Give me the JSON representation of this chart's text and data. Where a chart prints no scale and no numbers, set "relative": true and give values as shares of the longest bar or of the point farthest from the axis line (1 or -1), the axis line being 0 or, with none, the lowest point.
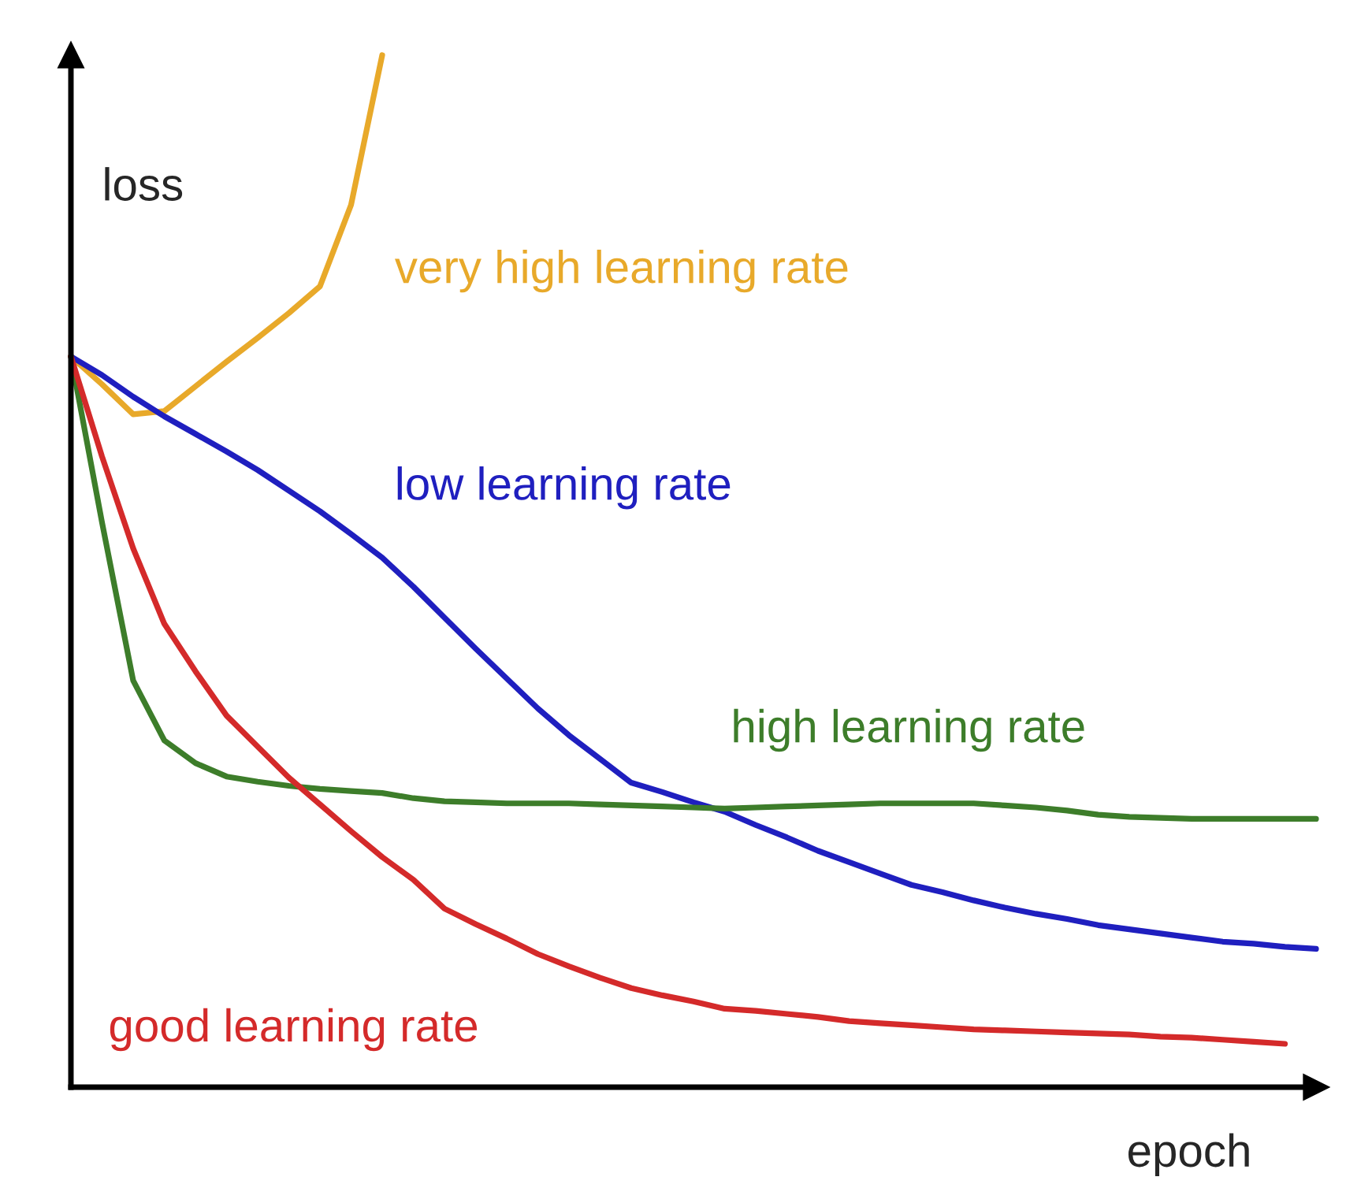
{
  "chart_data": {
    "type": "line",
    "relative": true,
    "ylabel": "loss",
    "xlabel": "epoch",
    "legend": false,
    "marker": "none",
    "line_style": "solid",
    "categories": [
      null,
      null,
      null,
      null,
      null,
      null,
      null,
      null,
      null,
      null,
      null,
      null,
      null,
      null,
      null,
      null,
      null,
      null,
      null,
      null,
      null,
      null,
      null,
      null,
      null,
      null,
      null,
      null,
      null,
      null,
      null,
      null,
      null,
      null,
      null,
      null,
      null,
      null,
      null,
      null,
      null
    ],
    "series": [
      {
        "name": "very high learning rate",
        "color": "#e8a92a",
        "values": [
          0.708,
          0.681,
          0.652,
          0.655,
          0.679,
          0.703,
          0.726,
          0.75,
          0.776,
          0.855,
          1.0,
          null,
          null,
          null,
          null,
          null,
          null,
          null,
          null,
          null,
          null,
          null,
          null,
          null,
          null,
          null,
          null,
          null,
          null,
          null,
          null,
          null,
          null,
          null,
          null,
          null,
          null,
          null,
          null,
          null,
          null
        ]
      },
      {
        "name": "low learning rate",
        "color": "#1f1fbf",
        "values": [
          0.708,
          0.69,
          0.669,
          0.65,
          0.633,
          0.616,
          0.598,
          0.578,
          0.558,
          0.536,
          0.513,
          0.485,
          0.455,
          0.425,
          0.396,
          0.367,
          0.341,
          0.318,
          0.295,
          0.286,
          0.276,
          0.267,
          0.254,
          0.242,
          0.229,
          0.218,
          0.207,
          0.196,
          0.189,
          0.181,
          0.174,
          0.168,
          0.163,
          0.157,
          0.153,
          0.149,
          0.145,
          0.141,
          0.139,
          0.136,
          0.134
        ]
      },
      {
        "name": "high learning rate",
        "color": "#3d7d2a",
        "values": [
          0.708,
          0.547,
          0.394,
          0.336,
          0.314,
          0.301,
          0.296,
          0.292,
          0.289,
          0.287,
          0.285,
          0.28,
          0.277,
          0.276,
          0.275,
          0.275,
          0.275,
          0.274,
          0.273,
          0.272,
          0.271,
          0.27,
          0.271,
          0.272,
          0.273,
          0.274,
          0.275,
          0.275,
          0.275,
          0.275,
          0.273,
          0.271,
          0.268,
          0.264,
          0.262,
          0.261,
          0.26,
          0.26,
          0.26,
          0.26,
          0.26
        ]
      },
      {
        "name": "good learning rate",
        "color": "#d42a2a",
        "values": [
          0.708,
          0.611,
          0.522,
          0.449,
          0.403,
          0.36,
          0.33,
          0.3,
          0.274,
          0.248,
          0.223,
          0.201,
          0.173,
          0.158,
          0.144,
          0.129,
          0.117,
          0.106,
          0.096,
          0.089,
          0.083,
          0.076,
          0.074,
          0.071,
          0.068,
          0.064,
          0.062,
          0.06,
          0.058,
          0.056,
          0.055,
          0.054,
          0.053,
          0.052,
          0.051,
          0.049,
          0.048,
          0.046,
          0.044,
          0.042,
          null
        ]
      }
    ]
  }
}
